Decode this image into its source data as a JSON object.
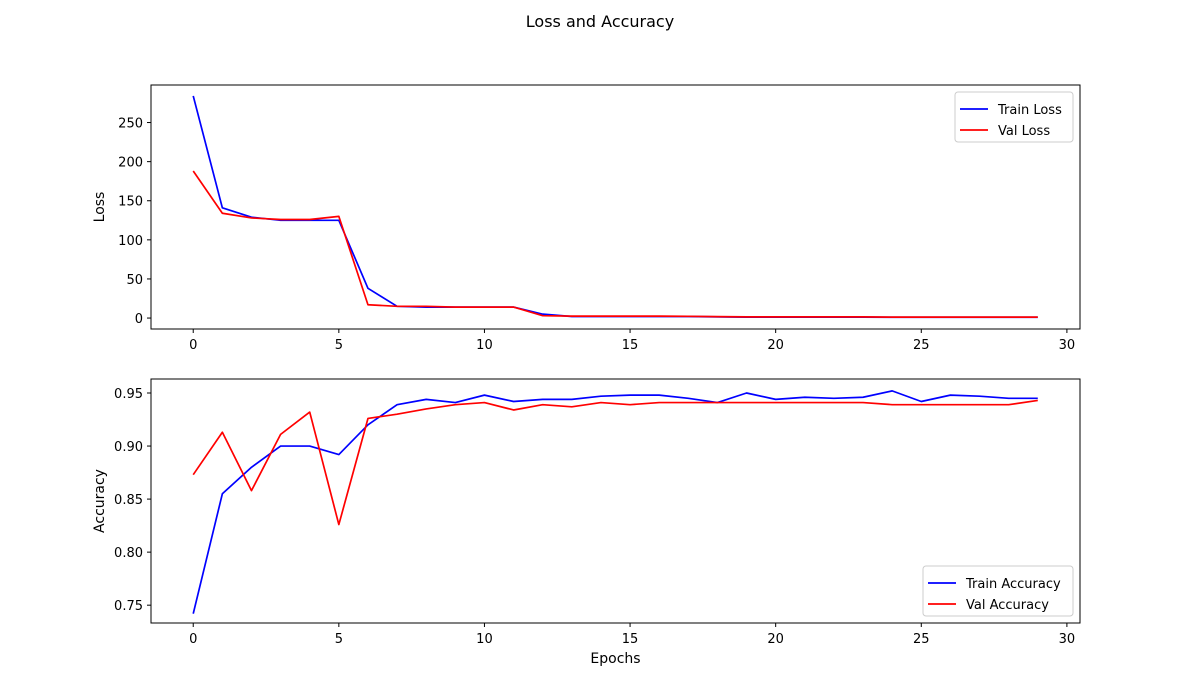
{
  "figure": {
    "title": "Loss and Accuracy"
  },
  "chart_data": [
    {
      "type": "line",
      "title": "",
      "xlabel": "",
      "ylabel": "Loss",
      "xlim": [
        -1.45,
        30.45
      ],
      "ylim": [
        -14,
        298
      ],
      "xticks": [
        0,
        5,
        10,
        15,
        20,
        25,
        30
      ],
      "yticks": [
        0,
        50,
        100,
        150,
        200,
        250
      ],
      "ytick_labels": [
        "0",
        "50",
        "100",
        "150",
        "200",
        "250"
      ],
      "grid": false,
      "legend_position": "upper right",
      "x": [
        0,
        1,
        2,
        3,
        4,
        5,
        6,
        7,
        8,
        9,
        10,
        11,
        12,
        13,
        14,
        15,
        16,
        17,
        18,
        19,
        20,
        21,
        22,
        23,
        24,
        25,
        26,
        27,
        28,
        29
      ],
      "series": [
        {
          "name": "Train Loss",
          "color": "#0000ff",
          "values": [
            284,
            141,
            129,
            125,
            125,
            125,
            38,
            15,
            14,
            14,
            14,
            14,
            5,
            2,
            2,
            2,
            2,
            2,
            1.5,
            1.2,
            1.2,
            1.2,
            1.2,
            1.2,
            1,
            1,
            1,
            1,
            1,
            1
          ]
        },
        {
          "name": "Val Loss",
          "color": "#ff0000",
          "values": [
            188,
            134,
            128,
            126,
            126,
            130,
            17,
            15,
            15,
            14,
            14,
            14,
            3,
            2.5,
            2.5,
            2.5,
            2.5,
            2.2,
            1.8,
            1.5,
            1.5,
            1.5,
            1.5,
            1.5,
            1.2,
            1.2,
            1.2,
            1.2,
            1.2,
            1.2
          ]
        }
      ]
    },
    {
      "type": "line",
      "title": "",
      "xlabel": "Epochs",
      "ylabel": "Accuracy",
      "xlim": [
        -1.45,
        30.45
      ],
      "ylim": [
        0.7332,
        0.9632
      ],
      "xticks": [
        0,
        5,
        10,
        15,
        20,
        25,
        30
      ],
      "yticks": [
        0.75,
        0.8,
        0.85,
        0.9,
        0.95
      ],
      "ytick_labels": [
        "0.75",
        "0.80",
        "0.85",
        "0.90",
        "0.95"
      ],
      "grid": false,
      "legend_position": "lower right",
      "x": [
        0,
        1,
        2,
        3,
        4,
        5,
        6,
        7,
        8,
        9,
        10,
        11,
        12,
        13,
        14,
        15,
        16,
        17,
        18,
        19,
        20,
        21,
        22,
        23,
        24,
        25,
        26,
        27,
        28,
        29
      ],
      "series": [
        {
          "name": "Train Accuracy",
          "color": "#0000ff",
          "values": [
            0.742,
            0.855,
            0.88,
            0.9,
            0.9,
            0.892,
            0.92,
            0.939,
            0.944,
            0.941,
            0.948,
            0.942,
            0.944,
            0.944,
            0.947,
            0.948,
            0.948,
            0.945,
            0.941,
            0.95,
            0.944,
            0.946,
            0.945,
            0.946,
            0.952,
            0.942,
            0.948,
            0.947,
            0.945,
            0.945
          ]
        },
        {
          "name": "Val Accuracy",
          "color": "#ff0000",
          "values": [
            0.873,
            0.913,
            0.858,
            0.911,
            0.932,
            0.826,
            0.926,
            0.93,
            0.935,
            0.939,
            0.941,
            0.934,
            0.939,
            0.937,
            0.941,
            0.939,
            0.941,
            0.941,
            0.941,
            0.941,
            0.941,
            0.941,
            0.941,
            0.941,
            0.939,
            0.939,
            0.939,
            0.939,
            0.939,
            0.943
          ]
        }
      ]
    }
  ]
}
